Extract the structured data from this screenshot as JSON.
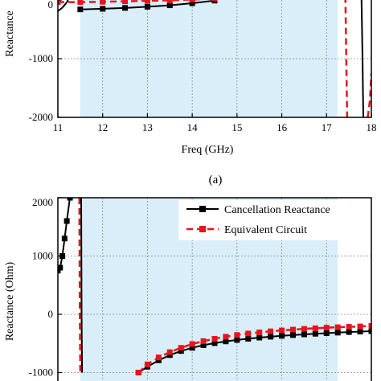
{
  "colors": {
    "band": "#d9eef8",
    "grid": "#8a8a8a",
    "cancellation": "#000000",
    "equivalent": "#e8141c"
  },
  "chart_data": [
    {
      "type": "line",
      "panel_label": "(a)",
      "xlabel": "Freq (GHz)",
      "ylabel": "Reactance",
      "xlim": [
        11,
        18
      ],
      "ylim": [
        -2000,
        0
      ],
      "x_ticks": [
        "11",
        "12",
        "13",
        "14",
        "15",
        "16",
        "17",
        "18"
      ],
      "y_ticks": [
        "-2000",
        "-1000",
        "0"
      ],
      "grid": true,
      "shaded_band": [
        11.5,
        17.25
      ],
      "series": [
        {
          "name": "Cancellation Reactance",
          "style": "solid",
          "marker": "square",
          "segments": [
            [
              [
                11.0,
                -190
              ],
              [
                11.1,
                -130
              ],
              [
                11.2,
                -40
              ],
              [
                11.25,
                40
              ]
            ],
            [
              [
                11.5,
                -160
              ],
              [
                12.0,
                -150
              ],
              [
                12.5,
                -135
              ],
              [
                13.0,
                -115
              ],
              [
                13.5,
                -90
              ],
              [
                14.0,
                -55
              ],
              [
                14.5,
                -10
              ]
            ],
            [
              [
                17.78,
                60
              ],
              [
                17.8,
                -900
              ],
              [
                17.82,
                -2000
              ]
            ]
          ]
        },
        {
          "name": "Equivalent Circuit",
          "style": "dashed",
          "marker": "square",
          "segments": [
            [
              [
                11.0,
                -35
              ],
              [
                11.5,
                -35
              ],
              [
                12.0,
                -30
              ],
              [
                12.5,
                -22
              ],
              [
                13.0,
                -14
              ],
              [
                13.5,
                -6
              ],
              [
                14.0,
                8
              ],
              [
                14.5,
                25
              ]
            ],
            [
              [
                17.42,
                60
              ],
              [
                17.44,
                -1000
              ],
              [
                17.46,
                -2000
              ]
            ],
            [
              [
                17.92,
                -2000
              ],
              [
                17.97,
                -1700
              ],
              [
                18.0,
                -1250
              ]
            ]
          ]
        }
      ]
    },
    {
      "type": "line",
      "xlabel": "",
      "ylabel": "Reactance (Ohm)",
      "xlim": [
        11,
        18
      ],
      "ylim": [
        -1000,
        2000
      ],
      "y_ticks": [
        "-1000",
        "0",
        "1000",
        "2000"
      ],
      "grid": true,
      "legend_position": "top-right",
      "shaded_band": [
        11.5,
        17.25
      ],
      "series": [
        {
          "name": "Cancellation Reactance",
          "style": "solid",
          "marker": "square",
          "segments": [
            [
              [
                11.0,
                750
              ],
              [
                11.05,
                800
              ],
              [
                11.1,
                1000
              ],
              [
                11.15,
                1300
              ],
              [
                11.2,
                1600
              ],
              [
                11.27,
                2000
              ]
            ],
            [
              [
                11.52,
                2000
              ],
              [
                11.53,
                0
              ],
              [
                11.54,
                -1000
              ]
            ],
            [
              [
                12.8,
                -1000
              ],
              [
                13.0,
                -900
              ],
              [
                13.25,
                -790
              ],
              [
                13.5,
                -700
              ],
              [
                13.75,
                -630
              ],
              [
                14.0,
                -575
              ],
              [
                14.25,
                -530
              ],
              [
                14.5,
                -495
              ],
              [
                14.75,
                -465
              ],
              [
                15.0,
                -440
              ],
              [
                15.25,
                -420
              ],
              [
                15.5,
                -400
              ],
              [
                15.75,
                -385
              ],
              [
                16.0,
                -370
              ],
              [
                16.25,
                -357
              ],
              [
                16.5,
                -345
              ],
              [
                16.75,
                -334
              ],
              [
                17.0,
                -324
              ],
              [
                17.25,
                -315
              ],
              [
                17.5,
                -305
              ],
              [
                17.75,
                -297
              ],
              [
                18.0,
                -290
              ]
            ]
          ]
        },
        {
          "name": "Equivalent Circuit",
          "style": "dashed",
          "marker": "square",
          "segments": [
            [
              [
                11.48,
                2000
              ],
              [
                11.49,
                0
              ],
              [
                11.5,
                -1000
              ]
            ],
            [
              [
                12.8,
                -1000
              ],
              [
                13.0,
                -860
              ],
              [
                13.25,
                -740
              ],
              [
                13.5,
                -650
              ],
              [
                13.75,
                -575
              ],
              [
                14.0,
                -510
              ],
              [
                14.25,
                -460
              ],
              [
                14.5,
                -420
              ],
              [
                14.75,
                -385
              ],
              [
                15.0,
                -355
              ],
              [
                15.25,
                -330
              ],
              [
                15.5,
                -310
              ],
              [
                15.75,
                -292
              ],
              [
                16.0,
                -277
              ],
              [
                16.25,
                -263
              ],
              [
                16.5,
                -250
              ],
              [
                16.75,
                -240
              ],
              [
                17.0,
                -230
              ],
              [
                17.25,
                -222
              ],
              [
                17.5,
                -215
              ],
              [
                17.75,
                -208
              ],
              [
                18.0,
                -200
              ]
            ]
          ]
        }
      ]
    }
  ]
}
